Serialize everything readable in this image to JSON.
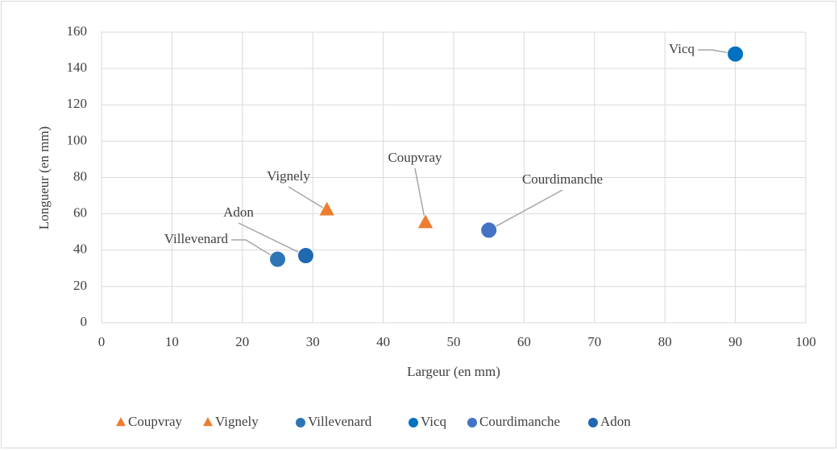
{
  "chart_data": {
    "type": "scatter",
    "x_label": "Largeur (en mm)",
    "y_label": "Longueur (en mm)",
    "series": [
      {
        "name": "Coupvray",
        "color": "#ed7d31",
        "marker": "triangle",
        "x": [
          46
        ],
        "values": [
          55
        ]
      },
      {
        "name": "Vignely",
        "color": "#ed7d31",
        "marker": "triangle",
        "x": [
          32
        ],
        "values": [
          62
        ]
      },
      {
        "name": "Villevenard",
        "color": "#2e75b6",
        "marker": "circle",
        "x": [
          25
        ],
        "values": [
          35
        ]
      },
      {
        "name": "Vicq",
        "color": "#0070c0",
        "marker": "circle",
        "x": [
          90
        ],
        "values": [
          148
        ]
      },
      {
        "name": "Courdimanche",
        "color": "#4472c4",
        "marker": "circle",
        "x": [
          55
        ],
        "values": [
          51
        ]
      },
      {
        "name": "Adon",
        "color": "#2068b0",
        "marker": "circle",
        "x": [
          29
        ],
        "values": [
          37
        ]
      }
    ],
    "xlim": [
      0,
      100
    ],
    "xticks": [
      0,
      10,
      20,
      30,
      40,
      50,
      60,
      70,
      80,
      90,
      100
    ],
    "ylim": [
      0,
      160
    ],
    "yticks": [
      0,
      20,
      40,
      60,
      80,
      100,
      120,
      140,
      160
    ],
    "grid": true,
    "legend": "bottom"
  }
}
